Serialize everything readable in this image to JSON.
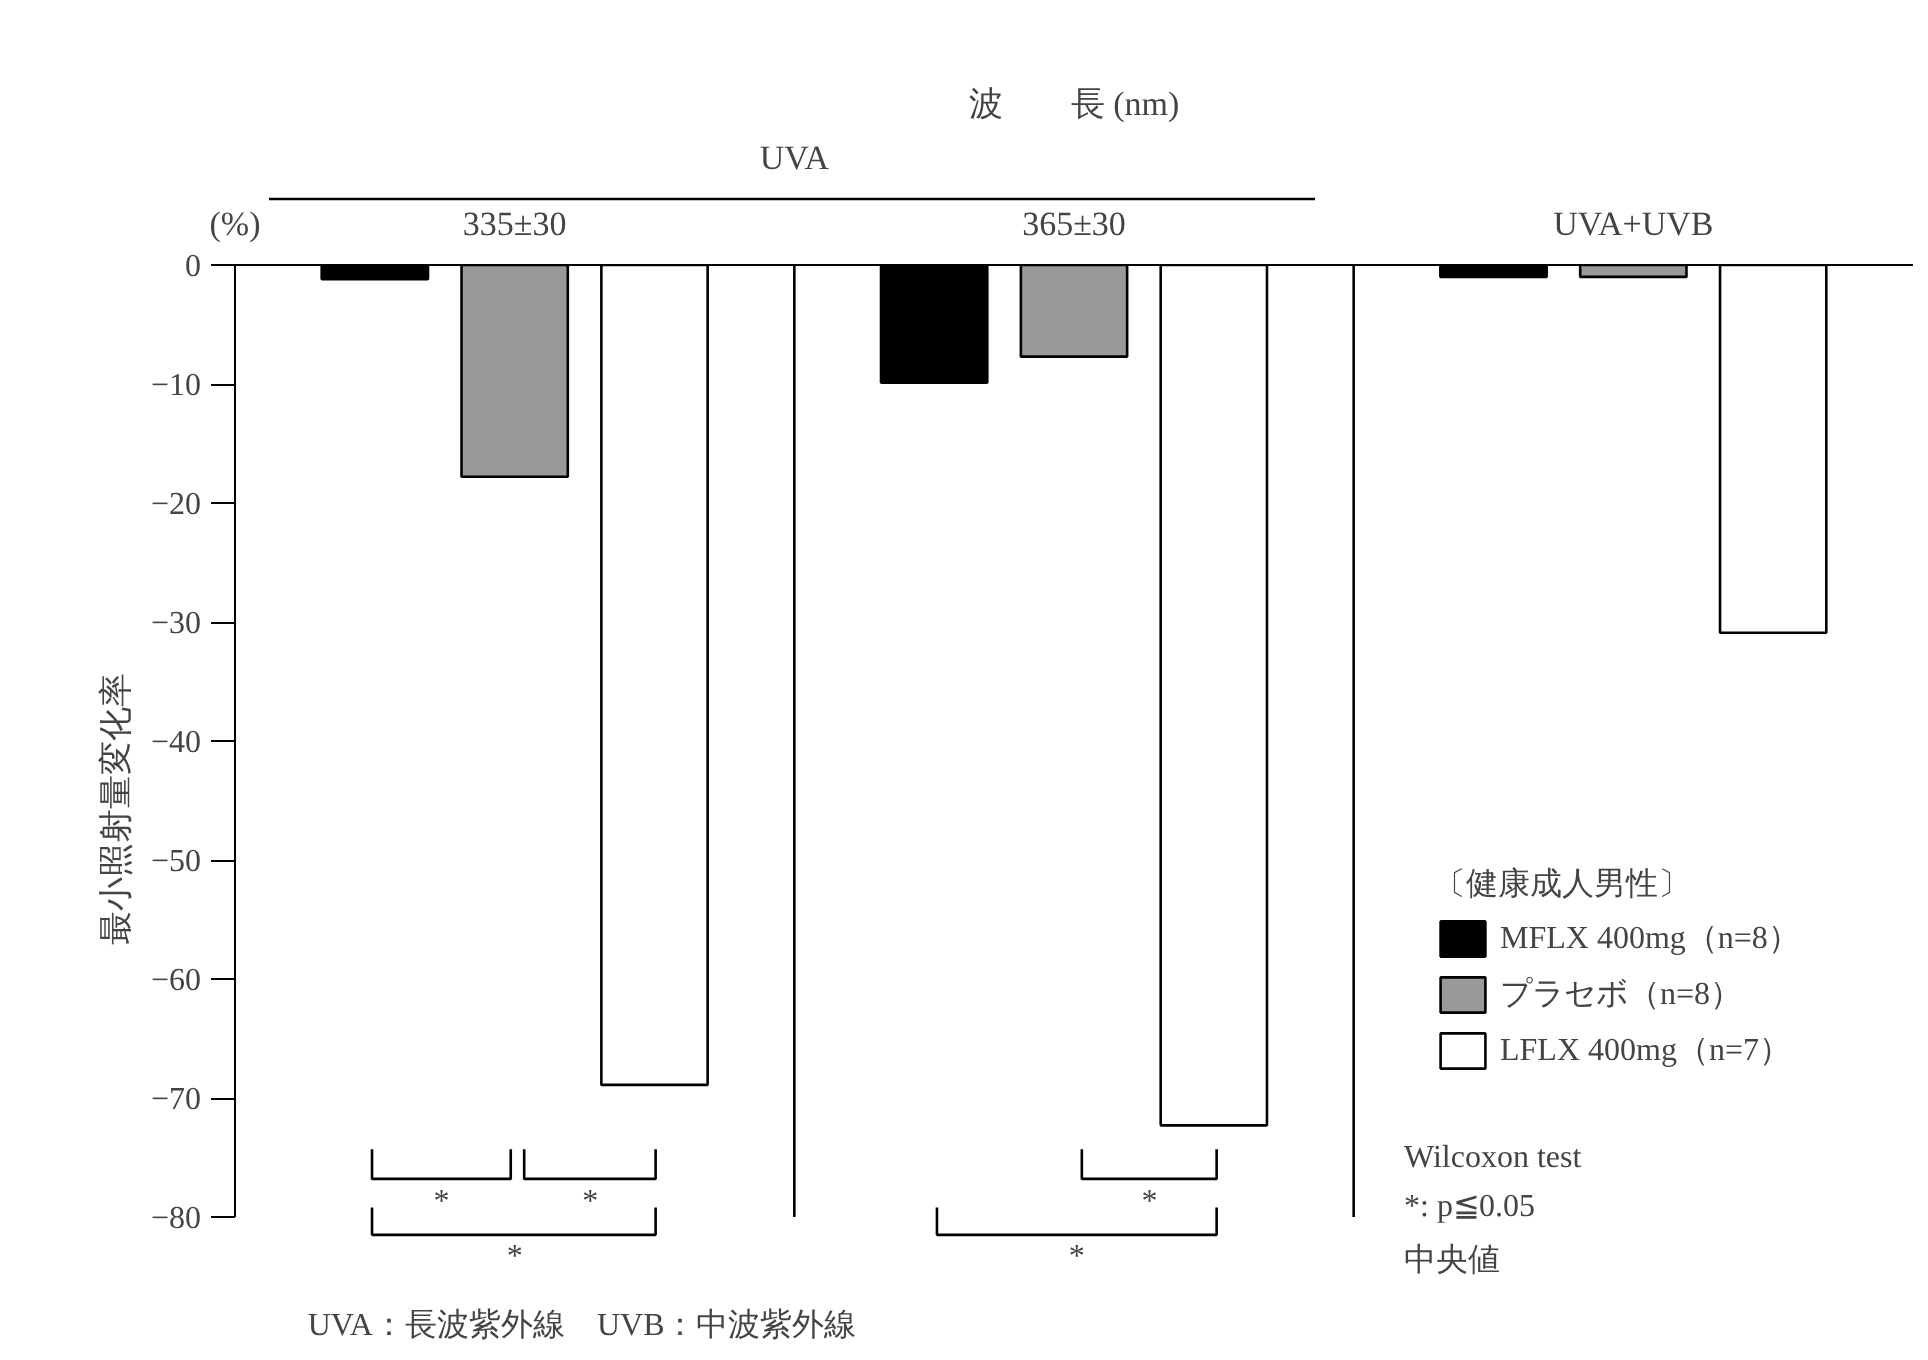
{
  "chart_data": {
    "type": "bar",
    "title": "波　　長 (nm)",
    "ylabel": "最小照射量変化率",
    "legend_title": "〔健康成人男性〕",
    "categories": [
      "335±30",
      "365±30",
      "UVA+UVB"
    ],
    "series": [
      {
        "name": "MFLX 400mg（n=8）",
        "color": "#000000",
        "values": [
          -1.2,
          -9.9,
          -1
        ]
      },
      {
        "name": "プラセボ（n=8）",
        "color": "#999999",
        "values": [
          -17.8,
          -7.7,
          -1
        ]
      },
      {
        "name": "LFLX 400mg（n=7）",
        "color": "#ffffff",
        "values": [
          -68.9,
          -72.3,
          -30.9
        ]
      }
    ],
    "ylim": [
      -80,
      0
    ],
    "yticks": [
      0,
      -10,
      -20,
      -30,
      -40,
      -50,
      -60,
      -70,
      -80
    ],
    "grid": false,
    "legend": "right",
    "annotations": [
      "(%)",
      "UVA",
      "*",
      "*",
      "*",
      "*",
      "*",
      "Wilcoxon test",
      "*: p≦0.05",
      "中央値",
      "UVA：長波紫外線　UVB：中波紫外線"
    ]
  }
}
